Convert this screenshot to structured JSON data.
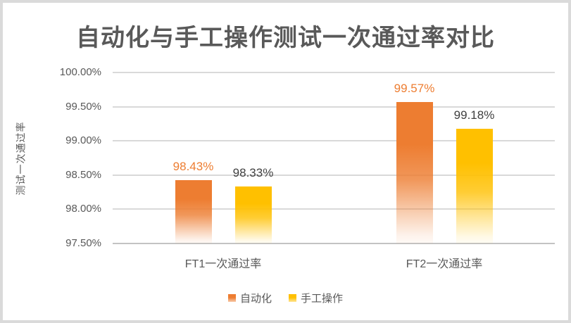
{
  "chart_data": {
    "type": "bar",
    "title": "自动化与手工操作测试一次通过率对比",
    "ylabel": "测试一次通过率",
    "xlabel": "",
    "categories": [
      "FT1一次通过率",
      "FT2一次通过率"
    ],
    "series": [
      {
        "name": "自动化",
        "color": "#ED7D31",
        "label_color": "#ED7D31",
        "values": [
          98.43,
          99.57
        ],
        "labels": [
          "98.43%",
          "99.57%"
        ]
      },
      {
        "name": "手工操作",
        "color": "#FFC000",
        "label_color": "#404040",
        "values": [
          98.33,
          99.18
        ],
        "labels": [
          "98.33%",
          "99.18%"
        ]
      }
    ],
    "ylim": [
      97.5,
      100
    ],
    "yticks": [
      {
        "value": 100.0,
        "label": "100.00%"
      },
      {
        "value": 99.5,
        "label": "99.50%"
      },
      {
        "value": 99.0,
        "label": "99.00%"
      },
      {
        "value": 98.5,
        "label": "98.50%"
      },
      {
        "value": 98.0,
        "label": "98.00%"
      },
      {
        "value": 97.5,
        "label": "97.50%"
      }
    ],
    "grid": true,
    "legend_position": "bottom",
    "bar_style": "vertical gradient fading to white at bottom"
  },
  "panel": {
    "background": "#ffffff",
    "frame_color": "#dadada",
    "gridline_color": "#d9d9d9",
    "axisline_color": "#c3c3c3",
    "text_color": "#595959"
  }
}
